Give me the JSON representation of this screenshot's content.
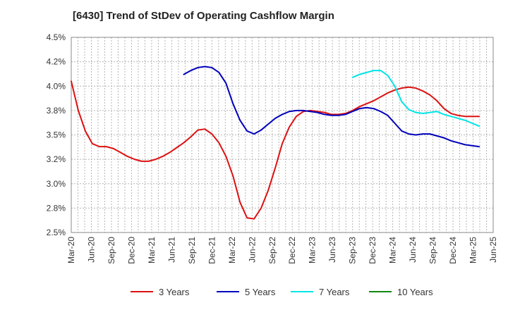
{
  "chart_data": {
    "type": "line",
    "title": "[6430]  Trend of StDev of Operating Cashflow Margin",
    "xlabel": "",
    "ylabel": "",
    "ylim": [
      2.5,
      4.5
    ],
    "grid": true,
    "legend_position": "bottom",
    "x_ticks": [
      "Mar-20",
      "Jun-20",
      "Sep-20",
      "Dec-20",
      "Mar-21",
      "Jun-21",
      "Sep-21",
      "Dec-21",
      "Mar-22",
      "Jun-22",
      "Sep-22",
      "Dec-22",
      "Mar-23",
      "Jun-23",
      "Sep-23",
      "Dec-23",
      "Mar-24",
      "Jun-24",
      "Sep-24",
      "Dec-24",
      "Mar-25",
      "Jun-25"
    ],
    "y_ticks": [
      "2.5%",
      "2.8%",
      "3.0%",
      "3.2%",
      "3.5%",
      "3.8%",
      "4.0%",
      "4.2%",
      "4.5%"
    ],
    "series": [
      {
        "name": "3 Years",
        "color": "#dd1111",
        "values": [
          4.05,
          3.75,
          3.54,
          3.41,
          3.38,
          3.38,
          3.36,
          3.32,
          3.28,
          3.25,
          3.23,
          3.23,
          3.25,
          3.28,
          3.32,
          3.37,
          3.42,
          3.48,
          3.55,
          3.56,
          3.51,
          3.42,
          3.28,
          3.08,
          2.81,
          2.65,
          2.64,
          2.75,
          2.93,
          3.16,
          3.41,
          3.58,
          3.69,
          3.74,
          3.75,
          3.74,
          3.73,
          3.71,
          3.71,
          3.72,
          3.75,
          3.79,
          3.82,
          3.85,
          3.89,
          3.93,
          3.96,
          3.98,
          3.99,
          3.98,
          3.95,
          3.91,
          3.85,
          3.77,
          3.72,
          3.7,
          3.69,
          3.69,
          3.69
        ]
      },
      {
        "name": "5 Years",
        "color": "#0000bb",
        "values": [
          null,
          null,
          null,
          null,
          null,
          null,
          null,
          null,
          null,
          null,
          null,
          null,
          null,
          null,
          null,
          null,
          4.12,
          4.16,
          4.19,
          4.2,
          4.19,
          4.14,
          4.03,
          3.82,
          3.65,
          3.54,
          3.51,
          3.55,
          3.61,
          3.67,
          3.71,
          3.74,
          3.75,
          3.75,
          3.74,
          3.73,
          3.71,
          3.7,
          3.7,
          3.71,
          3.74,
          3.77,
          3.78,
          3.77,
          3.74,
          3.7,
          3.62,
          3.54,
          3.51,
          3.5,
          3.51,
          3.51,
          3.49,
          3.47,
          3.44,
          3.42,
          3.4,
          3.39,
          3.38
        ]
      },
      {
        "name": "7 Years",
        "color": "#00e5e5",
        "values": [
          null,
          null,
          null,
          null,
          null,
          null,
          null,
          null,
          null,
          null,
          null,
          null,
          null,
          null,
          null,
          null,
          null,
          null,
          null,
          null,
          null,
          null,
          null,
          null,
          null,
          null,
          null,
          null,
          null,
          null,
          null,
          null,
          null,
          null,
          null,
          null,
          null,
          null,
          null,
          null,
          4.09,
          4.12,
          4.14,
          4.16,
          4.16,
          4.11,
          4.0,
          3.84,
          3.76,
          3.73,
          3.72,
          3.73,
          3.74,
          3.71,
          3.69,
          3.67,
          3.65,
          3.62,
          3.59
        ]
      },
      {
        "name": "10 Years",
        "color": "#118811",
        "values": []
      }
    ]
  }
}
